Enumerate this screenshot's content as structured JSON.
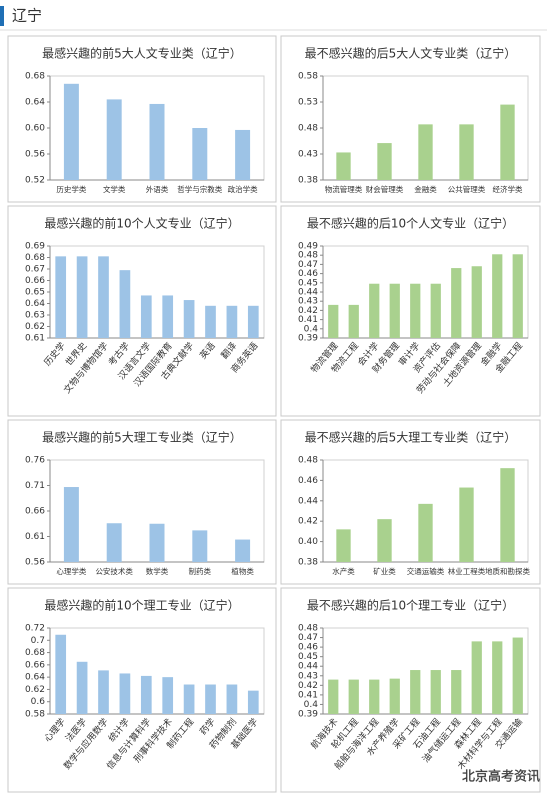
{
  "header": {
    "title": "辽宁"
  },
  "chart_data": [
    {
      "type": "bar",
      "title": "最感兴趣的前5大人文专业类（辽宁）",
      "categories": [
        "历史学类",
        "文学类",
        "外语类",
        "哲学与宗教类",
        "政治学类"
      ],
      "values": [
        0.668,
        0.644,
        0.637,
        0.6,
        0.597
      ],
      "color": "#9dc3e6",
      "ylim": [
        0.52,
        0.68
      ],
      "yticks": [
        0.52,
        0.56,
        {
          "value": 0.6,
          "label": "0.60"
        },
        0.64,
        0.68
      ]
    },
    {
      "type": "bar",
      "title": "最不感兴趣的后5大人文专业类（辽宁）",
      "categories": [
        "物流管理类",
        "财会管理类",
        "金融类",
        "公共管理类",
        "经济学类"
      ],
      "values": [
        0.433,
        0.451,
        0.487,
        0.487,
        0.525
      ],
      "color": "#a9d18e",
      "ylim": [
        0.38,
        0.58
      ],
      "yticks": [
        0.38,
        0.43,
        0.48,
        0.53,
        0.58
      ]
    },
    {
      "type": "bar",
      "title": "最感兴趣的前10个人文专业（辽宁）",
      "categories": [
        "历史学",
        "世界史",
        "文物与博物馆学",
        "考古学",
        "汉语言文学",
        "汉语国际教育",
        "古典文献学",
        "英语",
        "翻译",
        "商务英语"
      ],
      "values": [
        0.681,
        0.681,
        0.681,
        0.669,
        0.647,
        0.647,
        0.643,
        0.638,
        0.638,
        0.638
      ],
      "color": "#9dc3e6",
      "ylim": [
        0.61,
        0.69
      ],
      "yticks": [
        0.61,
        0.62,
        0.63,
        0.64,
        0.65,
        0.66,
        0.67,
        0.68,
        0.69
      ]
    },
    {
      "type": "bar",
      "title": "最不感兴趣的后10个人文专业（辽宁）",
      "categories": [
        "物流管理",
        "物流工程",
        "会计学",
        "财务管理",
        "审计学",
        "资产评估",
        "劳动与社会保障",
        "土地资源管理",
        "金融学",
        "金融工程"
      ],
      "values": [
        0.426,
        0.426,
        0.449,
        0.449,
        0.449,
        0.449,
        0.466,
        0.468,
        0.481,
        0.481
      ],
      "color": "#a9d18e",
      "ylim": [
        0.39,
        0.49
      ],
      "yticks": [
        0.39,
        0.4,
        0.41,
        0.42,
        0.43,
        0.44,
        0.45,
        0.46,
        0.47,
        0.48,
        0.49
      ]
    },
    {
      "type": "bar",
      "title": "最感兴趣的前5大理工专业类（辽宁）",
      "categories": [
        "心理学类",
        "公安技术类",
        "数学类",
        "制药类",
        "植物类"
      ],
      "values": [
        0.707,
        0.636,
        0.635,
        0.622,
        0.604
      ],
      "color": "#9dc3e6",
      "ylim": [
        0.56,
        0.76
      ],
      "yticks": [
        0.56,
        0.61,
        0.66,
        0.71,
        0.76
      ]
    },
    {
      "type": "bar",
      "title": "最不感兴趣的后5大理工专业类（辽宁）",
      "categories": [
        "水产类",
        "矿业类",
        "交通运输类",
        "林业工程类",
        "地质和勘探类"
      ],
      "values": [
        0.412,
        0.422,
        0.437,
        0.453,
        0.472
      ],
      "color": "#a9d18e",
      "ylim": [
        0.38,
        0.48
      ],
      "yticks": [
        0.38,
        {
          "value": 0.4,
          "label": "0.40"
        },
        0.42,
        0.44,
        0.46,
        0.48
      ]
    },
    {
      "type": "bar",
      "title": "最感兴趣的前10个理工专业（辽宁）",
      "categories": [
        "心理学",
        "法医学",
        "数学与应用数学",
        "统计学",
        "信息与计算科学",
        "刑事科学技术",
        "制药工程",
        "药学",
        "药物制剂",
        "基础医学"
      ],
      "values": [
        0.709,
        0.665,
        0.651,
        0.646,
        0.642,
        0.64,
        0.628,
        0.628,
        0.628,
        0.618
      ],
      "color": "#9dc3e6",
      "ylim": [
        0.58,
        0.72
      ],
      "yticks": [
        0.58,
        0.6,
        0.62,
        0.64,
        0.66,
        0.68,
        0.7,
        0.72
      ]
    },
    {
      "type": "bar",
      "title": "最不感兴趣的后10个理工专业（辽宁）",
      "categories": [
        "航海技术",
        "轮机工程",
        "船舶与海洋工程",
        "水产养殖学",
        "采矿工程",
        "石油工程",
        "油气储运工程",
        "森林工程",
        "木材科学与工程",
        "交通运输"
      ],
      "values": [
        0.426,
        0.426,
        0.426,
        0.427,
        0.436,
        0.436,
        0.436,
        0.466,
        0.466,
        0.47
      ],
      "color": "#a9d18e",
      "ylim": [
        0.39,
        0.48
      ],
      "yticks": [
        0.39,
        0.4,
        0.41,
        0.42,
        0.43,
        0.44,
        0.45,
        0.46,
        0.47,
        0.48
      ]
    }
  ],
  "watermark": "北京高考资讯"
}
